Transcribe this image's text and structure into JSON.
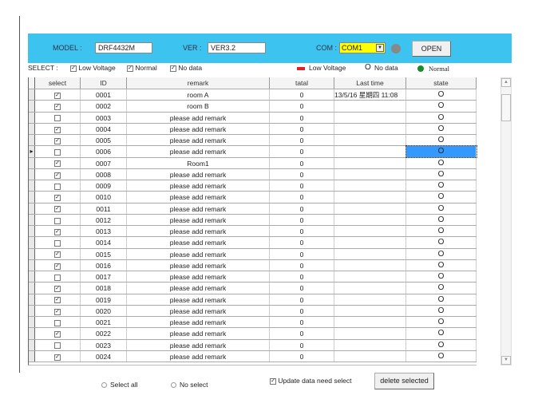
{
  "header": {
    "model_label": "MODEL :",
    "model_value": "DRF4432M",
    "ver_label": "VER :",
    "ver_value": "VER3.2",
    "com_label": "COM :",
    "com_value": "COM1",
    "open_label": "OPEN"
  },
  "filter": {
    "label": "SELECT :",
    "options": [
      {
        "label": "Low Voltage",
        "checked": true
      },
      {
        "label": "Normal",
        "checked": true
      },
      {
        "label": "No data",
        "checked": true
      }
    ]
  },
  "legend": [
    {
      "label": "Low Voltage",
      "color": "#e0202a"
    },
    {
      "label": "No data",
      "symbol": "O"
    },
    {
      "label": "Normal",
      "color": "#1a8a2a"
    }
  ],
  "table": {
    "columns": [
      "select",
      "ID",
      "remark",
      "tatal",
      "Last time",
      "state"
    ],
    "rows": [
      {
        "checked": true,
        "id": "0001",
        "remark": "room A",
        "total": "0",
        "last": "13/5/16 星期四 11:08",
        "state": "O"
      },
      {
        "checked": true,
        "id": "0002",
        "remark": "room B",
        "total": "0",
        "last": "",
        "state": "O"
      },
      {
        "checked": false,
        "id": "0003",
        "remark": "please add remark",
        "total": "0",
        "last": "",
        "state": "O"
      },
      {
        "checked": true,
        "id": "0004",
        "remark": "please add remark",
        "total": "0",
        "last": "",
        "state": "O"
      },
      {
        "checked": true,
        "id": "0005",
        "remark": "please add remark",
        "total": "0",
        "last": "",
        "state": "O"
      },
      {
        "checked": false,
        "id": "0006",
        "remark": "please add remark",
        "total": "0",
        "last": "",
        "state": "O",
        "current": true
      },
      {
        "checked": true,
        "id": "0007",
        "remark": "Room1",
        "total": "0",
        "last": "",
        "state": "O"
      },
      {
        "checked": true,
        "id": "0008",
        "remark": "please add remark",
        "total": "0",
        "last": "",
        "state": "O"
      },
      {
        "checked": false,
        "id": "0009",
        "remark": "please add remark",
        "total": "0",
        "last": "",
        "state": "O"
      },
      {
        "checked": true,
        "id": "0010",
        "remark": "please add remark",
        "total": "0",
        "last": "",
        "state": "O"
      },
      {
        "checked": true,
        "id": "0011",
        "remark": "please add remark",
        "total": "0",
        "last": "",
        "state": "O"
      },
      {
        "checked": false,
        "id": "0012",
        "remark": "please add remark",
        "total": "0",
        "last": "",
        "state": "O"
      },
      {
        "checked": true,
        "id": "0013",
        "remark": "please add remark",
        "total": "0",
        "last": "",
        "state": "O"
      },
      {
        "checked": false,
        "id": "0014",
        "remark": "please add remark",
        "total": "0",
        "last": "",
        "state": "O"
      },
      {
        "checked": true,
        "id": "0015",
        "remark": "please add remark",
        "total": "0",
        "last": "",
        "state": "O"
      },
      {
        "checked": true,
        "id": "0016",
        "remark": "please add remark",
        "total": "0",
        "last": "",
        "state": "O"
      },
      {
        "checked": false,
        "id": "0017",
        "remark": "please add remark",
        "total": "0",
        "last": "",
        "state": "O"
      },
      {
        "checked": true,
        "id": "0018",
        "remark": "please add remark",
        "total": "0",
        "last": "",
        "state": "O"
      },
      {
        "checked": true,
        "id": "0019",
        "remark": "please add remark",
        "total": "0",
        "last": "",
        "state": "O"
      },
      {
        "checked": true,
        "id": "0020",
        "remark": "please add remark",
        "total": "0",
        "last": "",
        "state": "O"
      },
      {
        "checked": false,
        "id": "0021",
        "remark": "please add remark",
        "total": "0",
        "last": "",
        "state": "O"
      },
      {
        "checked": true,
        "id": "0022",
        "remark": "please add remark",
        "total": "0",
        "last": "",
        "state": "O"
      },
      {
        "checked": false,
        "id": "0023",
        "remark": "please add remark",
        "total": "0",
        "last": "",
        "state": "O"
      },
      {
        "checked": true,
        "id": "0024",
        "remark": "please add remark",
        "total": "0",
        "last": "",
        "state": "O"
      }
    ]
  },
  "footer": {
    "select_all": "Select all",
    "no_select": "No select",
    "update_label": "Update data need select",
    "update_checked": true,
    "delete_label": "delete selected"
  }
}
